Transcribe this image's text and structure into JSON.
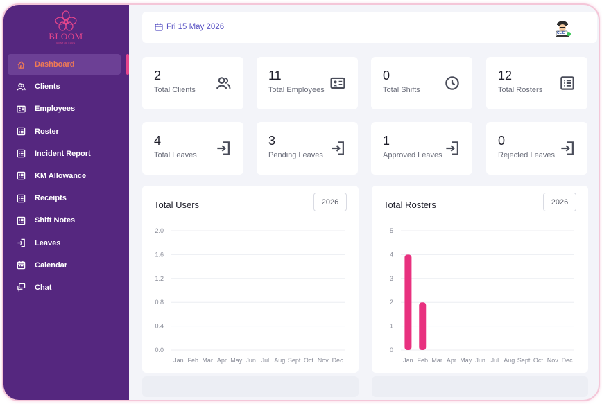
{
  "brand": {
    "name": "BLOOM",
    "tagline": "ROSTER CARE"
  },
  "sidebar": {
    "items": [
      {
        "label": "Dashboard",
        "icon": "home-icon",
        "active": true
      },
      {
        "label": "Clients",
        "icon": "users-icon"
      },
      {
        "label": "Employees",
        "icon": "id-card-icon"
      },
      {
        "label": "Roster",
        "icon": "list-icon"
      },
      {
        "label": "Incident Report",
        "icon": "list-icon"
      },
      {
        "label": "KM Allowance",
        "icon": "list-icon"
      },
      {
        "label": "Receipts",
        "icon": "list-icon"
      },
      {
        "label": "Shift Notes",
        "icon": "list-icon"
      },
      {
        "label": "Leaves",
        "icon": "login-icon"
      },
      {
        "label": "Calendar",
        "icon": "calendar-icon"
      },
      {
        "label": "Chat",
        "icon": "chat-icon"
      }
    ]
  },
  "header": {
    "date": "Fri 15 May 2026",
    "avatar_badge": "CLIE"
  },
  "stats": [
    {
      "value": "2",
      "label": "Total Clients",
      "icon": "users-icon"
    },
    {
      "value": "11",
      "label": "Total Employees",
      "icon": "id-card-icon"
    },
    {
      "value": "0",
      "label": "Total Shifts",
      "icon": "clock-icon"
    },
    {
      "value": "12",
      "label": "Total Rosters",
      "icon": "list-icon"
    },
    {
      "value": "4",
      "label": "Total Leaves",
      "icon": "login-icon"
    },
    {
      "value": "3",
      "label": "Pending Leaves",
      "icon": "login-icon"
    },
    {
      "value": "1",
      "label": "Approved Leaves",
      "icon": "login-icon"
    },
    {
      "value": "0",
      "label": "Rejected Leaves",
      "icon": "login-icon"
    }
  ],
  "colors": {
    "sidebar": "#55277f",
    "accent": "#e5468c",
    "active_text": "#f07a55",
    "date_text": "#5b55c4"
  },
  "chart_data": [
    {
      "type": "bar",
      "title": "Total Users",
      "year": "2026",
      "categories": [
        "Jan",
        "Feb",
        "Mar",
        "Apr",
        "May",
        "Jun",
        "Jul",
        "Aug",
        "Sept",
        "Oct",
        "Nov",
        "Dec"
      ],
      "values": [
        0,
        0,
        0,
        0,
        0,
        0,
        0,
        0,
        0,
        0,
        0,
        0
      ],
      "yticks": [
        "0.0",
        "0.4",
        "0.8",
        "1.2",
        "1.6",
        "2.0"
      ],
      "ylim": [
        0,
        2
      ],
      "grid": true
    },
    {
      "type": "bar",
      "title": "Total Rosters",
      "year": "2026",
      "categories": [
        "Jan",
        "Feb",
        "Mar",
        "Apr",
        "May",
        "Jun",
        "Jul",
        "Aug",
        "Sept",
        "Oct",
        "Nov",
        "Dec"
      ],
      "values": [
        4,
        2,
        0,
        0,
        0,
        0,
        0,
        0,
        0,
        0,
        0,
        0
      ],
      "yticks": [
        "0",
        "1",
        "2",
        "3",
        "4",
        "5"
      ],
      "ylim": [
        0,
        5
      ],
      "grid": true,
      "bar_color": "#e8317f"
    }
  ]
}
